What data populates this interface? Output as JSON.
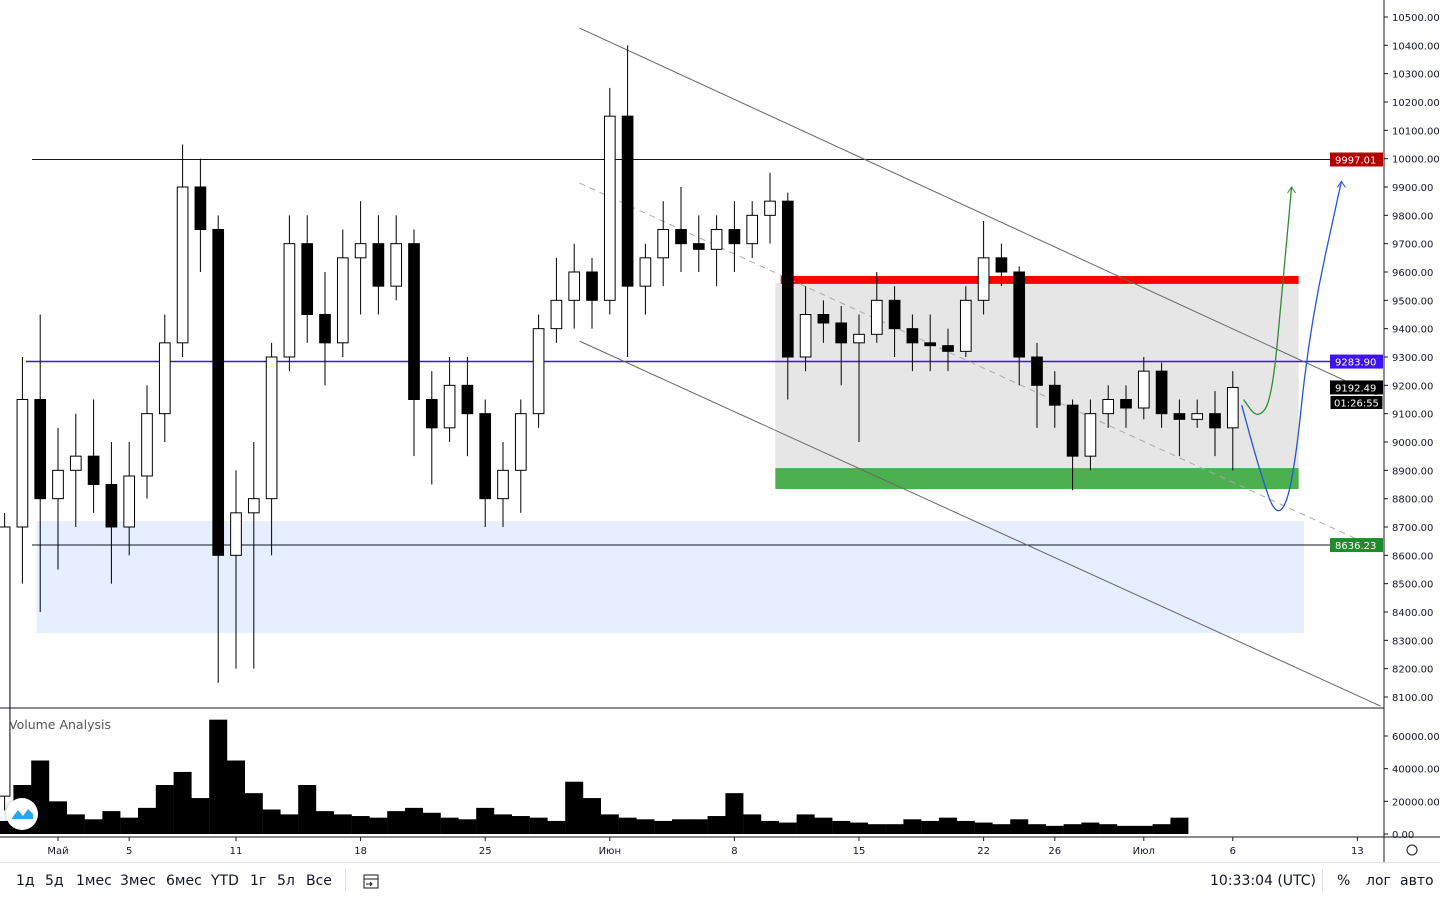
{
  "chart_data": {
    "type": "candlestick",
    "ylim": [
      8050,
      10550
    ],
    "price_ticks": [
      "10500.00",
      "10400.00",
      "10300.00",
      "10200.00",
      "10100.00",
      "10000.00",
      "9900.00",
      "9800.00",
      "9700.00",
      "9600.00",
      "9500.00",
      "9400.00",
      "9300.00",
      "9200.00",
      "9100.00",
      "9000.00",
      "8900.00",
      "8800.00",
      "8700.00",
      "8600.00",
      "8500.00",
      "8400.00",
      "8300.00",
      "8200.00",
      "8100.00"
    ],
    "price_tick_values": [
      10500,
      10400,
      10300,
      10200,
      10100,
      10000,
      9900,
      9800,
      9700,
      9600,
      9500,
      9400,
      9300,
      9200,
      9100,
      9000,
      8900,
      8800,
      8700,
      8600,
      8500,
      8400,
      8300,
      8200,
      8100
    ],
    "x_ticks": [
      {
        "label": "Май",
        "day": 0
      },
      {
        "label": "5",
        "day": 4
      },
      {
        "label": "11",
        "day": 10
      },
      {
        "label": "18",
        "day": 17
      },
      {
        "label": "25",
        "day": 24
      },
      {
        "label": "Июн",
        "day": 31
      },
      {
        "label": "8",
        "day": 38
      },
      {
        "label": "15",
        "day": 45
      },
      {
        "label": "22",
        "day": 52
      },
      {
        "label": "26",
        "day": 56
      },
      {
        "label": "Июл",
        "day": 61
      },
      {
        "label": "6",
        "day": 66
      },
      {
        "label": "13",
        "day": 73
      }
    ],
    "candles": [
      [
        -3,
        7750,
        8750,
        7700,
        8700
      ],
      [
        -2,
        8700,
        9300,
        8500,
        9150
      ],
      [
        -1,
        9150,
        9450,
        8400,
        8800
      ],
      [
        0,
        8800,
        9050,
        8550,
        8900
      ],
      [
        1,
        8900,
        9100,
        8700,
        8950
      ],
      [
        2,
        8950,
        9150,
        8750,
        8850
      ],
      [
        3,
        8850,
        9000,
        8500,
        8700
      ],
      [
        4,
        8700,
        9000,
        8600,
        8880
      ],
      [
        5,
        8880,
        9200,
        8800,
        9100
      ],
      [
        6,
        9100,
        9450,
        9000,
        9350
      ],
      [
        7,
        9350,
        10050,
        9300,
        9900
      ],
      [
        8,
        9900,
        10000,
        9600,
        9750
      ],
      [
        9,
        9750,
        9800,
        8150,
        8600
      ],
      [
        10,
        8600,
        8900,
        8200,
        8750
      ],
      [
        11,
        8750,
        9000,
        8200,
        8800
      ],
      [
        12,
        8800,
        9350,
        8600,
        9300
      ],
      [
        13,
        9300,
        9800,
        9250,
        9700
      ],
      [
        14,
        9700,
        9800,
        9350,
        9450
      ],
      [
        15,
        9450,
        9600,
        9200,
        9350
      ],
      [
        16,
        9350,
        9750,
        9300,
        9650
      ],
      [
        17,
        9650,
        9850,
        9450,
        9700
      ],
      [
        18,
        9700,
        9800,
        9450,
        9550
      ],
      [
        19,
        9550,
        9800,
        9500,
        9700
      ],
      [
        20,
        9700,
        9750,
        8950,
        9150
      ],
      [
        21,
        9150,
        9250,
        8850,
        9050
      ],
      [
        22,
        9050,
        9300,
        9000,
        9200
      ],
      [
        23,
        9200,
        9300,
        8950,
        9100
      ],
      [
        24,
        9100,
        9150,
        8700,
        8800
      ],
      [
        25,
        8800,
        9000,
        8700,
        8900
      ],
      [
        26,
        8900,
        9150,
        8750,
        9100
      ],
      [
        27,
        9100,
        9450,
        9050,
        9400
      ],
      [
        28,
        9400,
        9650,
        9350,
        9500
      ],
      [
        29,
        9500,
        9700,
        9400,
        9600
      ],
      [
        30,
        9600,
        9650,
        9400,
        9500
      ],
      [
        31,
        9500,
        10250,
        9450,
        10150
      ],
      [
        32,
        10150,
        10400,
        9300,
        9550
      ],
      [
        33,
        9550,
        9700,
        9450,
        9650
      ],
      [
        34,
        9650,
        9850,
        9550,
        9750
      ],
      [
        35,
        9750,
        9900,
        9600,
        9700
      ],
      [
        36,
        9700,
        9800,
        9600,
        9680
      ],
      [
        37,
        9680,
        9800,
        9550,
        9750
      ],
      [
        38,
        9750,
        9850,
        9600,
        9700
      ],
      [
        39,
        9700,
        9850,
        9650,
        9800
      ],
      [
        40,
        9800,
        9950,
        9700,
        9850
      ],
      [
        41,
        9850,
        9880,
        9150,
        9300
      ],
      [
        42,
        9300,
        9550,
        9250,
        9450
      ],
      [
        43,
        9450,
        9500,
        9350,
        9420
      ],
      [
        44,
        9420,
        9480,
        9200,
        9350
      ],
      [
        45,
        9350,
        9450,
        9000,
        9380
      ],
      [
        46,
        9380,
        9600,
        9350,
        9500
      ],
      [
        47,
        9500,
        9550,
        9300,
        9400
      ],
      [
        48,
        9400,
        9450,
        9250,
        9350
      ],
      [
        49,
        9350,
        9450,
        9250,
        9340
      ],
      [
        50,
        9340,
        9400,
        9250,
        9320
      ],
      [
        51,
        9320,
        9550,
        9300,
        9500
      ],
      [
        52,
        9500,
        9780,
        9450,
        9650
      ],
      [
        53,
        9650,
        9700,
        9550,
        9600
      ],
      [
        54,
        9600,
        9620,
        9200,
        9300
      ],
      [
        55,
        9300,
        9350,
        9050,
        9200
      ],
      [
        56,
        9200,
        9250,
        9050,
        9130
      ],
      [
        57,
        9130,
        9150,
        8830,
        8950
      ],
      [
        58,
        8950,
        9150,
        8900,
        9100
      ],
      [
        59,
        9100,
        9200,
        9050,
        9150
      ],
      [
        60,
        9150,
        9200,
        9050,
        9120
      ],
      [
        61,
        9120,
        9300,
        9080,
        9250
      ],
      [
        62,
        9250,
        9280,
        9050,
        9100
      ],
      [
        63,
        9100,
        9150,
        8950,
        9080
      ],
      [
        64,
        9080,
        9150,
        9050,
        9100
      ],
      [
        65,
        9100,
        9180,
        8950,
        9050
      ],
      [
        66,
        9050,
        9250,
        8900,
        9192.49
      ]
    ],
    "volume": [
      8000,
      30000,
      45000,
      20000,
      12000,
      9000,
      14000,
      10000,
      16000,
      30000,
      38000,
      22000,
      70000,
      45000,
      25000,
      15000,
      12000,
      30000,
      14000,
      12000,
      11000,
      10000,
      14000,
      16000,
      13000,
      10000,
      9000,
      16000,
      12000,
      11000,
      10000,
      8000,
      32000,
      22000,
      12000,
      10000,
      9000,
      8000,
      9000,
      9000,
      11000,
      25000,
      12000,
      8000,
      7000,
      12000,
      10000,
      8000,
      7000,
      6000,
      6000,
      9000,
      8000,
      10000,
      8000,
      7000,
      6000,
      9000,
      6000,
      5000,
      6000,
      7000,
      6000,
      5000,
      5000,
      6000,
      10000
    ],
    "volume_ticks": [
      "60000.00",
      "40000.00",
      "20000.00",
      "0.00"
    ],
    "volume_tick_values": [
      60000,
      40000,
      20000,
      0
    ],
    "levels": [
      {
        "price": 9997.01,
        "label": "9997.01",
        "color": "#b30000",
        "line": "#131722"
      },
      {
        "price": 9283.9,
        "label": "9283.90",
        "color": "#3d12f5",
        "line": "#3d12f5"
      },
      {
        "price": 8636.23,
        "label": "8636.23",
        "color": "#1e8c2a",
        "line": "#131722"
      }
    ],
    "last_price": {
      "label": "9192.49",
      "countdown": "01:26:55",
      "price": 9192.49
    },
    "channel": {
      "upper": [
        [
          29.3,
          10461
        ],
        [
          74.3,
          9159
        ]
      ],
      "lower": [
        [
          29.3,
          9356
        ],
        [
          74.3,
          8068
        ]
      ],
      "middle": [
        [
          29.3,
          9914
        ],
        [
          74.3,
          8619
        ]
      ]
    },
    "range_box": {
      "from_day": 40.3,
      "to_day": 69.7,
      "top": 9561,
      "bottom": 8834,
      "color": "#e3e3e3"
    },
    "resistance_band": {
      "from_day": 40.6,
      "to_day": 69.7,
      "top": 9586,
      "bottom": 9558,
      "color": "#ff0000"
    },
    "support_band": {
      "from_day": 40.3,
      "to_day": 69.7,
      "top": 8908,
      "bottom": 8834,
      "color": "#4caf50"
    },
    "demand_zone": {
      "from_day": -1.2,
      "to_day": 70,
      "top": 8721,
      "bottom": 8326,
      "color": "#e6efff"
    },
    "projections": [
      {
        "color": "#2e8b2e",
        "points": [
          [
            66.6,
            9150
          ],
          [
            67.4,
            9080
          ],
          [
            68.2,
            9150
          ],
          [
            68.8,
            9550
          ],
          [
            69.3,
            9900
          ]
        ]
      },
      {
        "color": "#2255dd",
        "points": [
          [
            66.5,
            9130
          ],
          [
            67.5,
            8900
          ],
          [
            68.5,
            8720
          ],
          [
            69.4,
            8850
          ],
          [
            70.3,
            9400
          ],
          [
            72.1,
            9920
          ]
        ]
      }
    ],
    "indicator_title": "Volume Analysis"
  },
  "toolbar": {
    "ranges": [
      "1д",
      "5д",
      "1мес",
      "3мес",
      "6мес",
      "YTD",
      "1г",
      "5л",
      "Все"
    ],
    "time": "10:33:04 (UTC)",
    "percent": "%",
    "log": "лог",
    "auto": "авто"
  },
  "colors": {
    "candle": "#000000",
    "axis": "#131722"
  }
}
